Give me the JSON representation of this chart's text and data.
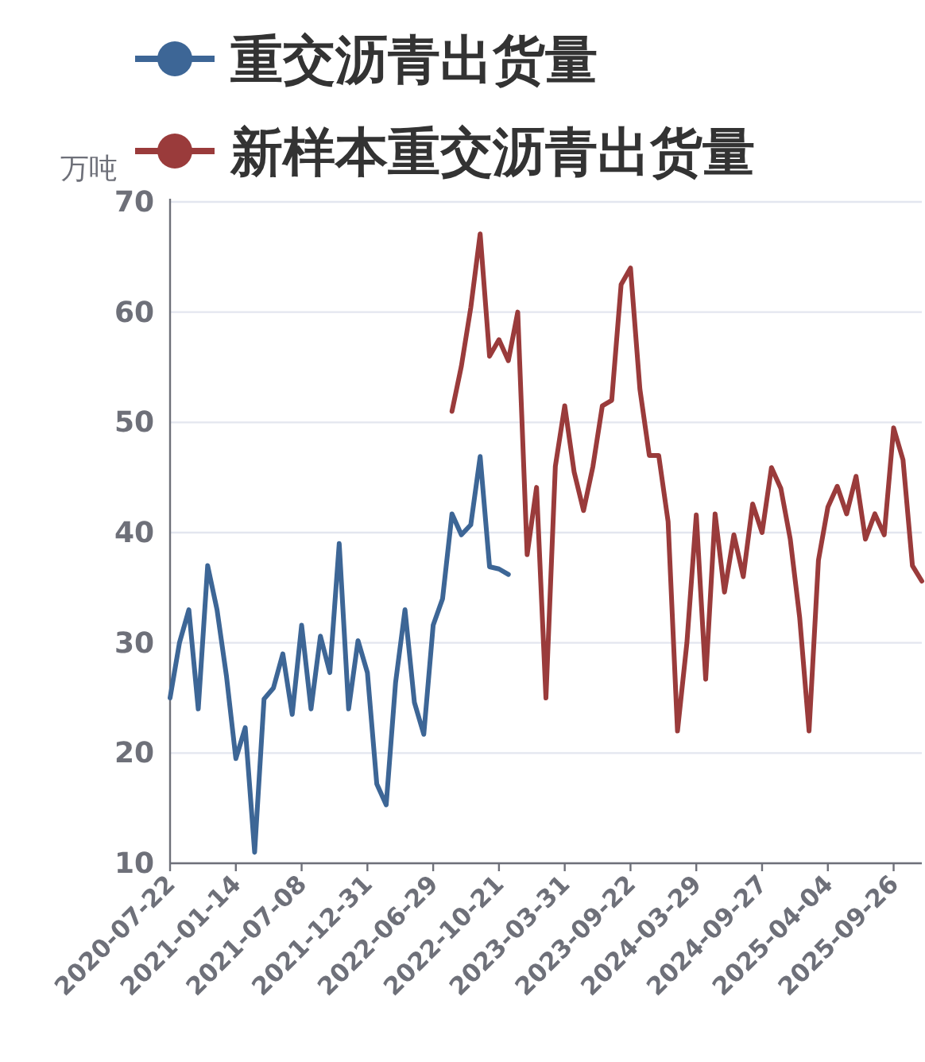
{
  "chart_data": {
    "type": "line",
    "ylabel": "万吨",
    "categories": [
      "2020-07-22",
      null,
      null,
      null,
      null,
      null,
      null,
      "2021-01-14",
      null,
      null,
      null,
      null,
      null,
      null,
      "2021-07-08",
      null,
      null,
      null,
      null,
      null,
      null,
      "2021-12-31",
      null,
      null,
      null,
      null,
      null,
      null,
      "2022-06-29",
      null,
      null,
      null,
      null,
      null,
      null,
      "2022-10-21",
      null,
      null,
      null,
      null,
      null,
      null,
      "2023-03-31",
      null,
      null,
      null,
      null,
      null,
      null,
      "2023-09-22",
      null,
      null,
      null,
      null,
      null,
      null,
      "2024-03-29",
      null,
      null,
      null,
      null,
      null,
      null,
      "2024-09-27",
      null,
      null,
      null,
      null,
      null,
      null,
      "2025-04-04",
      null,
      null,
      null,
      null,
      null,
      null,
      "2025-09-26",
      null,
      null,
      null
    ],
    "series": [
      {
        "name": "重交沥青出货量",
        "color": "#3d6696",
        "values": [
          25,
          30,
          33,
          24,
          37,
          33,
          27,
          19.5,
          22.3,
          11,
          24.9,
          25.9,
          29,
          23.5,
          31.6,
          24,
          30.6,
          27.3,
          39,
          24,
          30.2,
          27.3,
          17.2,
          15.3,
          26.4,
          33,
          24.6,
          21.7,
          31.6,
          34,
          41.7,
          39.8,
          40.7,
          46.9,
          36.9,
          36.7,
          36.2,
          null,
          null,
          null,
          null,
          null,
          null,
          null,
          null,
          null,
          null,
          null,
          null,
          null,
          null,
          null,
          null,
          null,
          null,
          null,
          null,
          null,
          null,
          null,
          null,
          null,
          null,
          null,
          null,
          null,
          null,
          null,
          null,
          null,
          null,
          null,
          null,
          null,
          null,
          null,
          null,
          null,
          null,
          null,
          null
        ]
      },
      {
        "name": "新样本重交沥青出货量",
        "color": "#9a3b3b",
        "values": [
          null,
          null,
          null,
          null,
          null,
          null,
          null,
          null,
          null,
          null,
          null,
          null,
          null,
          null,
          null,
          null,
          null,
          null,
          null,
          null,
          null,
          null,
          null,
          null,
          null,
          null,
          null,
          null,
          null,
          null,
          51,
          55.1,
          60.4,
          67.1,
          56,
          57.5,
          55.6,
          60,
          38,
          44.1,
          25,
          46,
          51.5,
          45.5,
          42,
          46,
          51.5,
          52,
          62.5,
          64,
          53,
          47,
          47,
          41,
          22,
          30,
          41.6,
          26.7,
          41.7,
          34.6,
          39.8,
          36,
          42.6,
          40,
          45.9,
          44,
          39.4,
          32.3,
          22,
          37.5,
          42.3,
          44.2,
          41.7,
          45.1,
          39.4,
          41.7,
          39.8,
          49.5,
          46.6,
          37,
          35.6
        ]
      }
    ],
    "ylim": [
      10,
      70
    ],
    "yticks": [
      10,
      20,
      30,
      40,
      50,
      60,
      70
    ],
    "grid": "y",
    "legend": "top left"
  }
}
